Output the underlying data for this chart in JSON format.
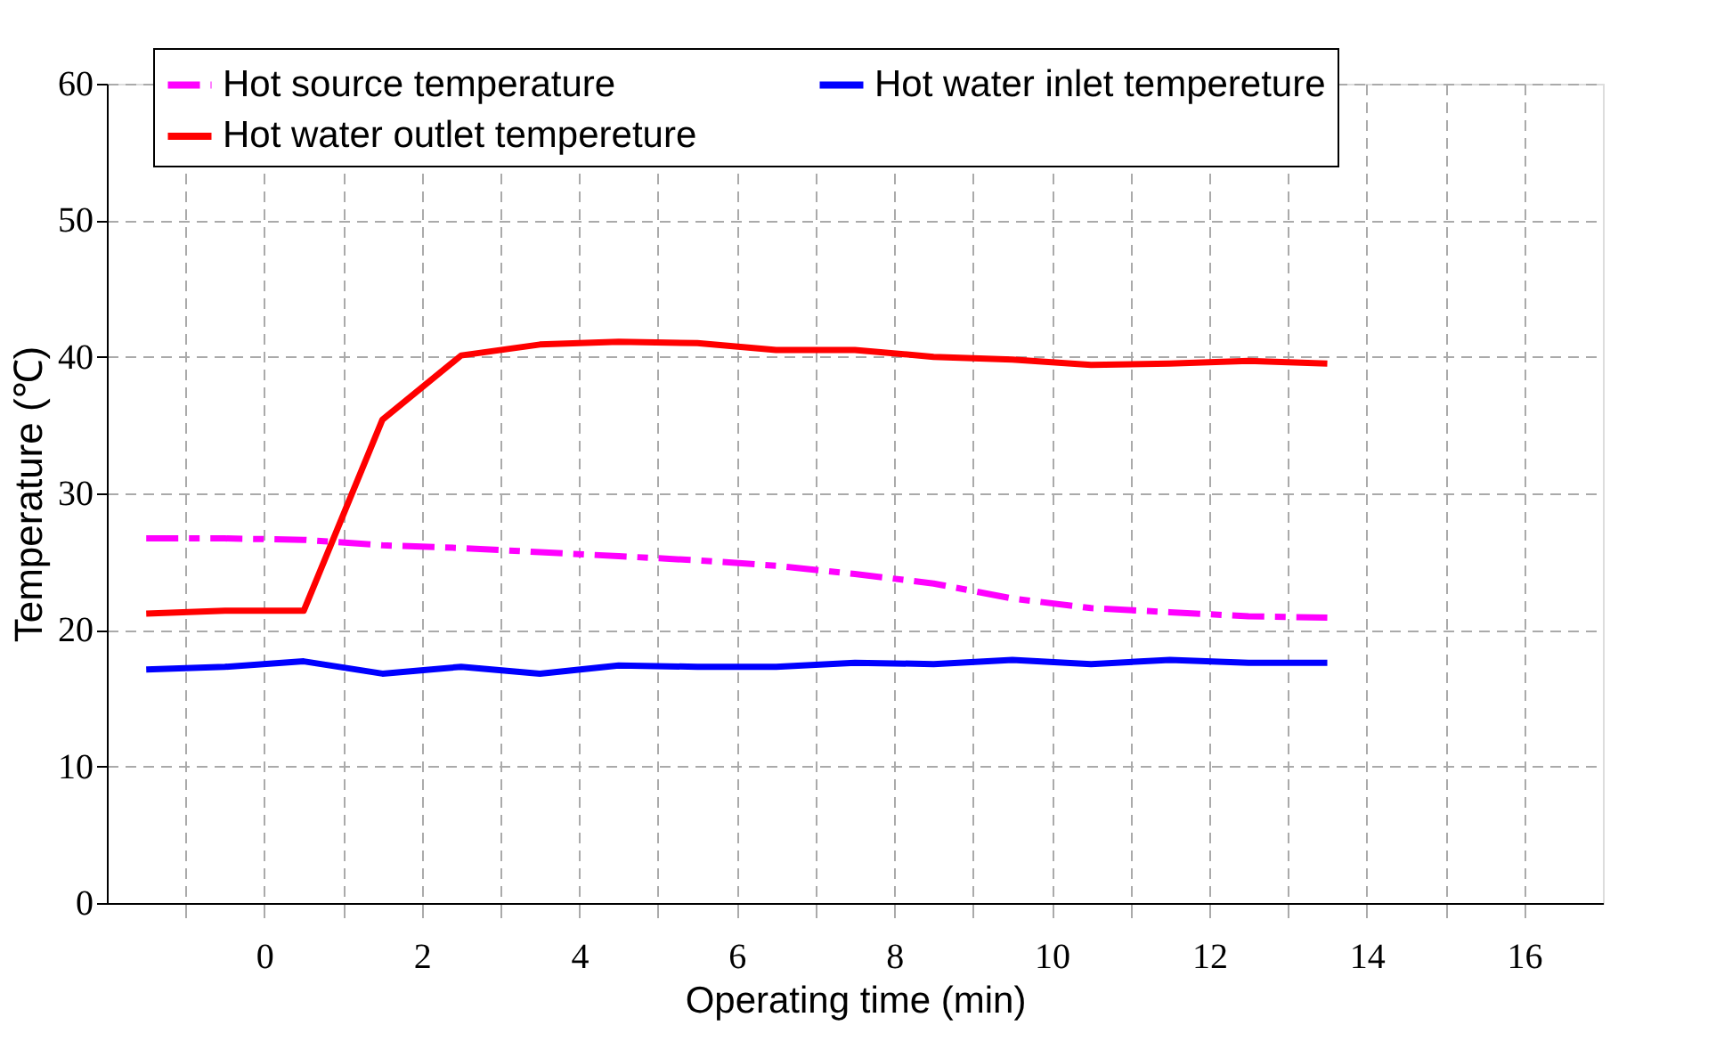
{
  "chart_data": {
    "type": "line",
    "xlabel": "Operating time (min)",
    "ylabel": "Temperature (℃)",
    "x": [
      -1.5,
      -0.5,
      0.5,
      1.5,
      2.5,
      3.5,
      4.5,
      5.5,
      6.5,
      7.5,
      8.5,
      9.5,
      10.5,
      11.5,
      12.5,
      13.5
    ],
    "series": [
      {
        "name": "Hot source temperature",
        "color": "#ff00ff",
        "line_style": "dashed",
        "values": [
          26.7,
          26.7,
          26.6,
          26.2,
          26.0,
          25.7,
          25.4,
          25.1,
          24.7,
          24.1,
          23.4,
          22.3,
          21.6,
          21.3,
          21.0,
          20.9
        ]
      },
      {
        "name": "Hot water outlet tempereture",
        "color": "#ff0000",
        "line_style": "solid",
        "values": [
          21.2,
          21.4,
          21.4,
          35.4,
          40.1,
          40.9,
          41.1,
          41.0,
          40.5,
          40.5,
          40.0,
          39.8,
          39.4,
          39.5,
          39.7,
          39.5
        ]
      },
      {
        "name": "Hot water inlet tempereture",
        "color": "#0000ff",
        "line_style": "solid",
        "values": [
          17.1,
          17.3,
          17.7,
          16.8,
          17.3,
          16.8,
          17.4,
          17.3,
          17.3,
          17.6,
          17.5,
          17.8,
          17.5,
          17.8,
          17.6,
          17.6
        ]
      }
    ],
    "xlim": [
      -2,
      17
    ],
    "xticks": [
      {
        "value": -1,
        "label": null
      },
      0,
      {
        "value": 1,
        "label": null
      },
      2,
      {
        "value": 3,
        "label": null
      },
      4,
      {
        "value": 5,
        "label": null
      },
      6,
      {
        "value": 7,
        "label": null
      },
      8,
      {
        "value": 9,
        "label": null
      },
      10,
      {
        "value": 11,
        "label": null
      },
      12,
      {
        "value": 13,
        "label": null
      },
      14,
      {
        "value": 15,
        "label": null
      },
      16
    ],
    "ylim": [
      0,
      60
    ],
    "yticks": [
      0,
      10,
      20,
      30,
      40,
      50,
      60
    ],
    "grid": true,
    "legend": "top",
    "marker": "none"
  }
}
